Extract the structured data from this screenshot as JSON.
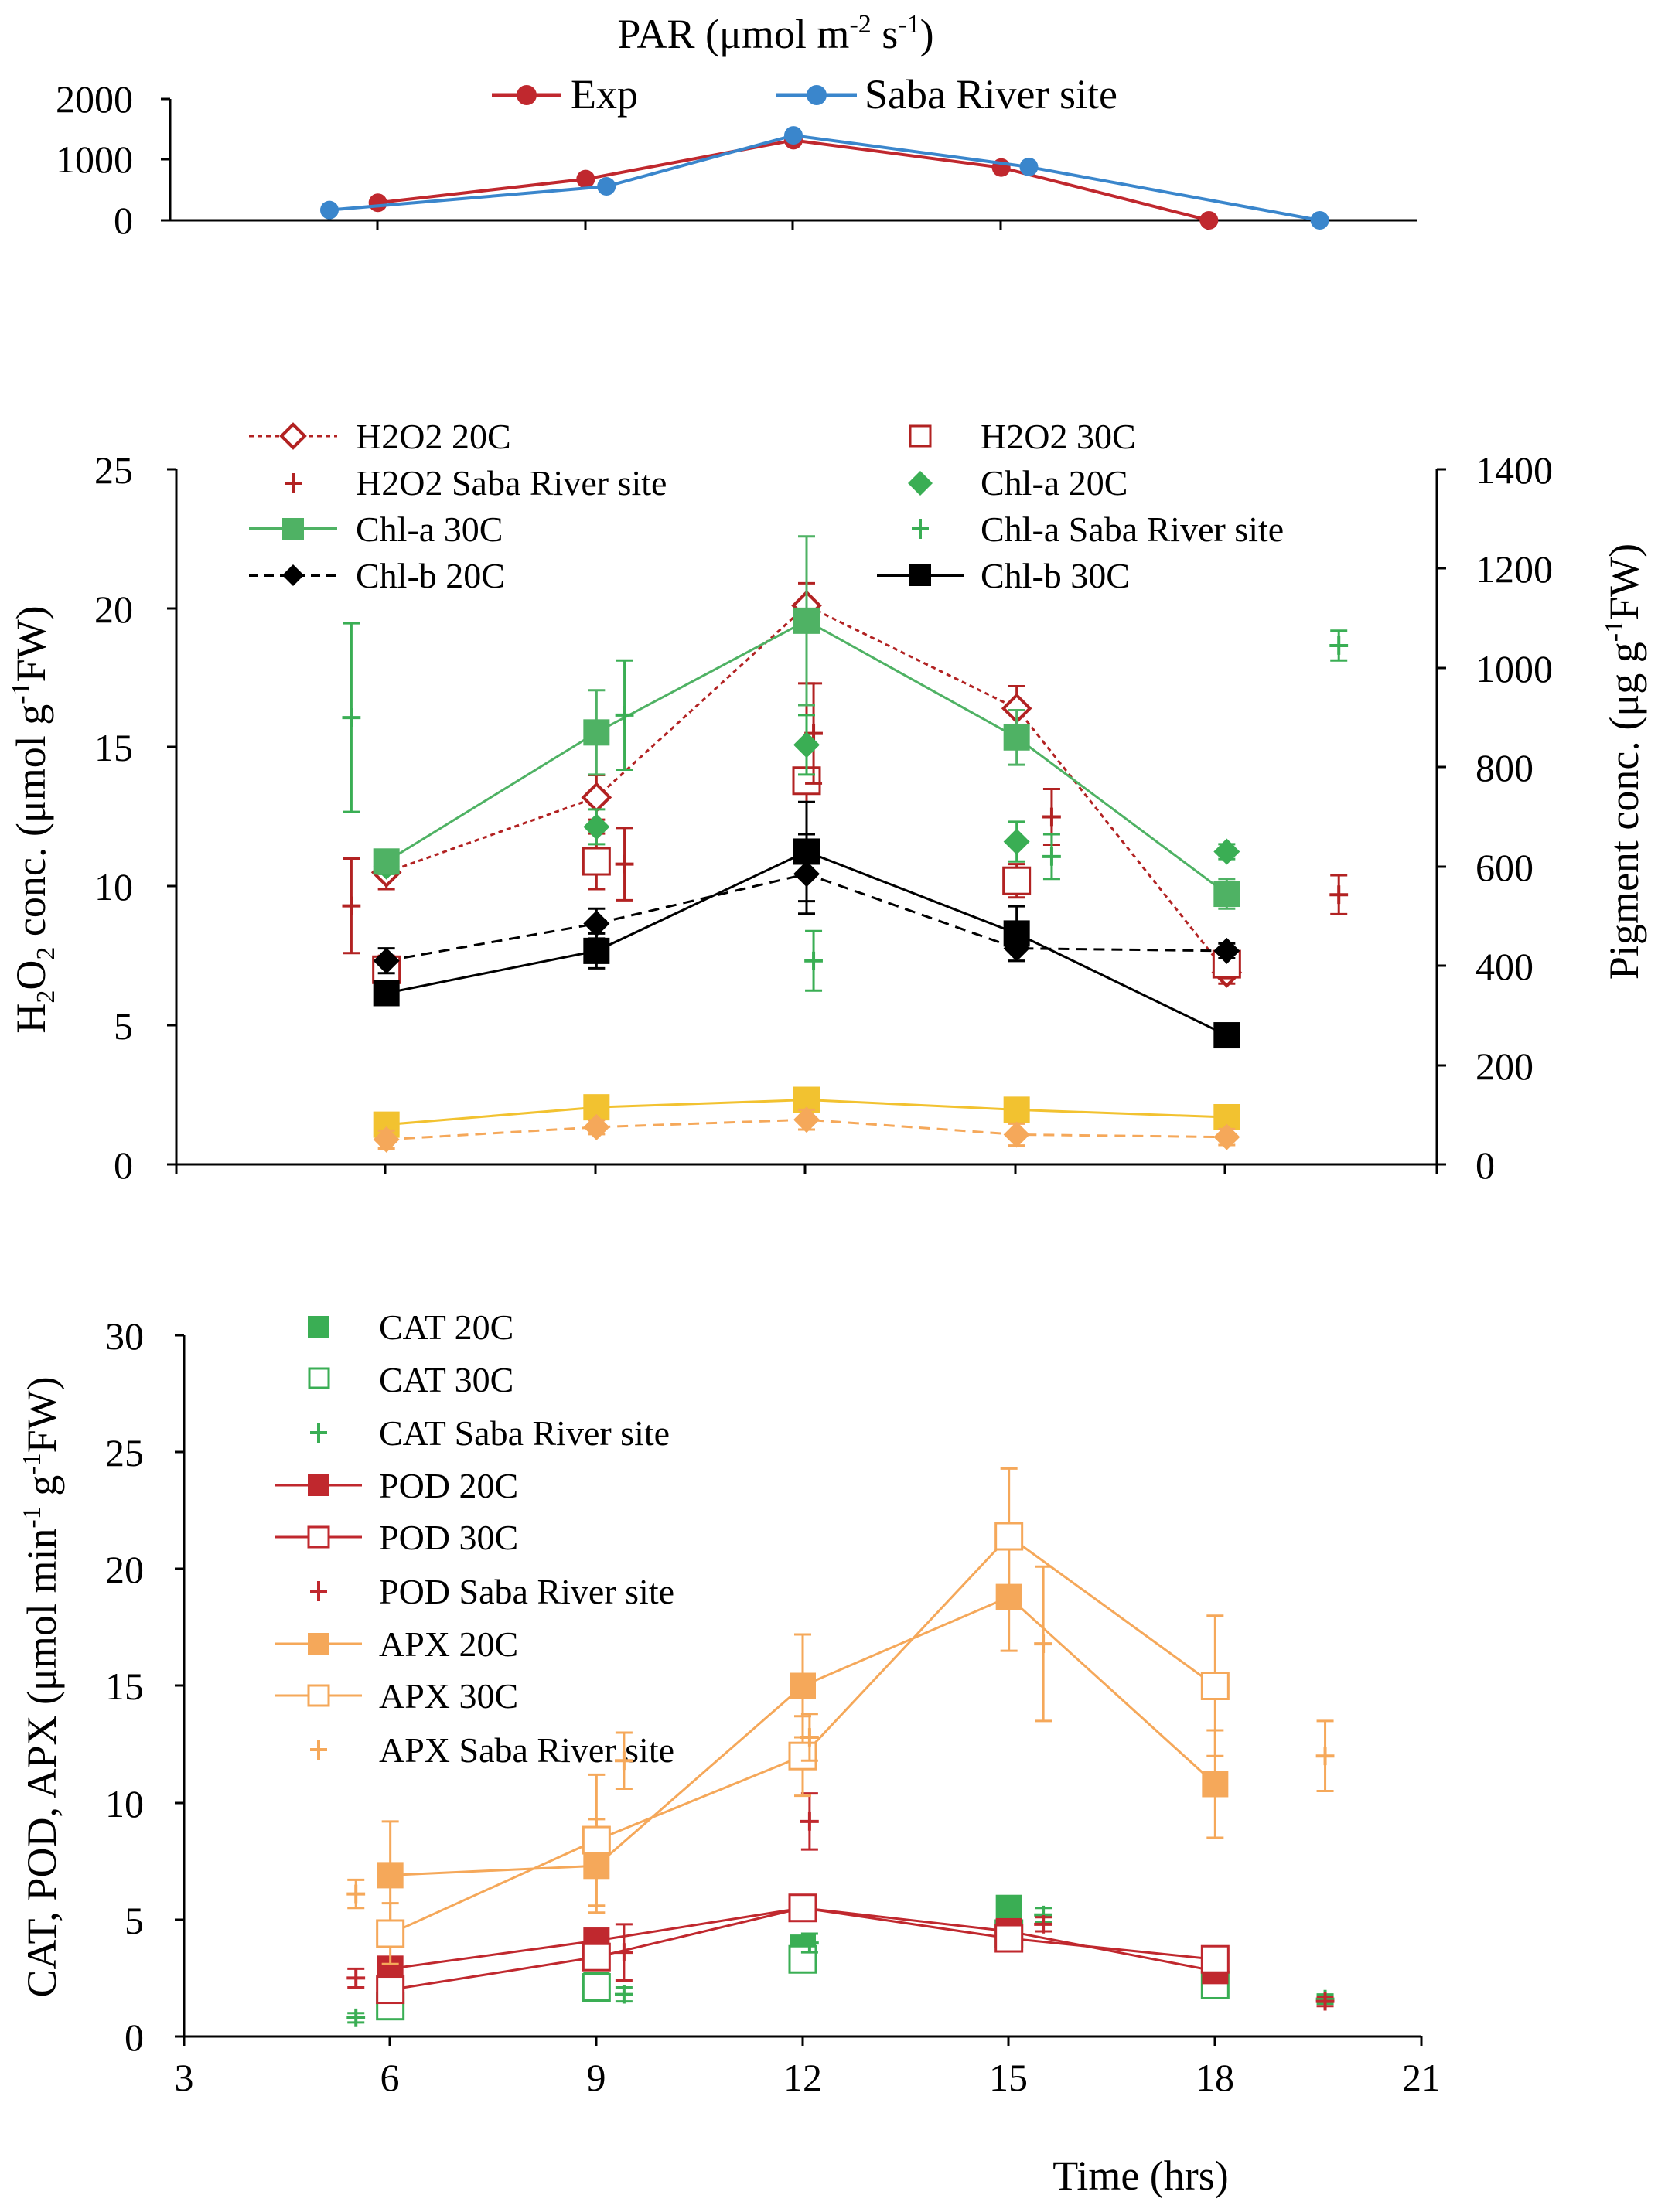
{
  "chart_data": [
    {
      "id": "par",
      "type": "line",
      "title": "PAR (μmol m-2 s-1)",
      "title_parts": {
        "base": "PAR (μmol m",
        "sup1": "-2",
        "mid": " s",
        "sup2": "-1",
        "end": ")"
      },
      "xlim": [
        3,
        21
      ],
      "ylim": [
        0,
        2000
      ],
      "yticks": [
        "0",
        "1000",
        "2000"
      ],
      "legend": "top-center",
      "series": [
        {
          "name": "Exp",
          "color": "#c0282e",
          "marker": "circle",
          "fill": "filled",
          "line": "solid",
          "x": [
            6,
            9,
            12,
            15,
            18
          ],
          "y": [
            290,
            680,
            1320,
            870,
            0
          ],
          "err": []
        },
        {
          "name": "Saba River site",
          "color": "#3a86cc",
          "marker": "circle",
          "fill": "filled",
          "line": "solid",
          "x": [
            5.3,
            9.3,
            12,
            15.4,
            19.6
          ],
          "y": [
            170,
            560,
            1400,
            880,
            0
          ],
          "err": []
        }
      ]
    },
    {
      "id": "h2o2-pigment",
      "type": "line",
      "ylabel": "H2O2 conc. (μmol g-1FW)",
      "ylabel_parts": {
        "a": "H",
        "b": "2",
        "c": "O",
        "d": "2",
        "e": " conc. (μmol g",
        "f": "-1",
        "g": "FW)"
      },
      "y2label": "Pigment conc. (μg g-1FW)",
      "y2label_parts": {
        "a": "Pigment conc. (μg g",
        "b": "-1",
        "c": "FW)"
      },
      "xlim": [
        3,
        21
      ],
      "ylim": [
        0,
        25
      ],
      "y2lim": [
        0,
        1400
      ],
      "yticks": [
        "0",
        "5",
        "10",
        "15",
        "20",
        "25"
      ],
      "y2ticks": [
        "0",
        "200",
        "400",
        "600",
        "800",
        "1000",
        "1200",
        "1400"
      ],
      "legend": "top, two columns",
      "series": [
        {
          "name": "H2O2 20C",
          "color": "#b22222",
          "marker": "diamond",
          "fill": "open",
          "line": "dotted",
          "axis": "left",
          "x": [
            6,
            9,
            12,
            15,
            18
          ],
          "y": [
            10.5,
            13.2,
            20.1,
            16.4,
            6.9
          ],
          "err": [
            0.6,
            0.8,
            0.8,
            0.8,
            0.4
          ]
        },
        {
          "name": "H2O2 30C",
          "color": "#b22222",
          "marker": "square",
          "fill": "open",
          "line": "none",
          "axis": "left",
          "x": [
            6,
            9,
            12,
            15,
            18
          ],
          "y": [
            7.0,
            10.9,
            13.8,
            10.2,
            7.2
          ],
          "err": [
            0.5,
            1.0,
            3.5,
            0.6,
            0.5
          ]
        },
        {
          "name": "H2O2 Saba River site",
          "color": "#b22222",
          "marker": "plus",
          "fill": "none",
          "line": "none",
          "axis": "left",
          "x": [
            5.5,
            9.4,
            12.1,
            15.5,
            19.6
          ],
          "y": [
            9.3,
            10.8,
            15.5,
            12.5,
            9.7
          ],
          "err": [
            1.7,
            1.3,
            1.8,
            1.0,
            0.7
          ]
        },
        {
          "name": "Chl-a 20C",
          "color": "#3aae54",
          "marker": "diamond",
          "fill": "filled",
          "line": "none",
          "axis": "right",
          "x": [
            6,
            9,
            12,
            15,
            18
          ],
          "y": [
            600,
            680,
            845,
            650,
            630
          ],
          "err": [
            15,
            35,
            60,
            40,
            15
          ]
        },
        {
          "name": "Chl-a 30C",
          "color": "#4fb264",
          "marker": "square",
          "fill": "filled",
          "line": "solid",
          "axis": "right",
          "x": [
            6,
            9,
            12,
            15,
            18
          ],
          "y": [
            610,
            870,
            1095,
            860,
            545
          ],
          "err": [
            20,
            85,
            170,
            55,
            30
          ]
        },
        {
          "name": "Chl-a Saba River site",
          "color": "#3aae54",
          "marker": "plus",
          "fill": "none",
          "line": "none",
          "axis": "right",
          "x": [
            5.5,
            9.4,
            12.1,
            15.5,
            19.6
          ],
          "y": [
            900,
            905,
            410,
            620,
            1045
          ],
          "err": [
            190,
            110,
            60,
            45,
            30
          ]
        },
        {
          "name": "Chl-b 20C",
          "color": "#000000",
          "marker": "diamond",
          "fill": "filled",
          "line": "dashed",
          "axis": "right",
          "x": [
            6,
            9,
            12,
            15,
            18
          ],
          "y": [
            410,
            485,
            585,
            435,
            430
          ],
          "err": [
            25,
            30,
            80,
            25,
            15
          ]
        },
        {
          "name": "Chl-b 30C",
          "color": "#000000",
          "marker": "square",
          "fill": "filled",
          "line": "solid",
          "axis": "right",
          "x": [
            6,
            9,
            12,
            15,
            18
          ],
          "y": [
            345,
            430,
            630,
            465,
            260
          ],
          "err": [
            15,
            35,
            100,
            55,
            15
          ]
        },
        {
          "name": "",
          "color": "#f2c230",
          "marker": "square",
          "fill": "filled",
          "line": "solid",
          "axis": "right",
          "x": [
            6,
            9,
            12,
            15,
            18
          ],
          "y": [
            80,
            115,
            130,
            110,
            95
          ],
          "err": [
            10,
            10,
            12,
            10,
            10
          ]
        },
        {
          "name": "",
          "color": "#f5a85a",
          "marker": "diamond",
          "fill": "filled",
          "line": "dashed",
          "axis": "right",
          "x": [
            6,
            9,
            12,
            15,
            18
          ],
          "y": [
            50,
            75,
            90,
            60,
            55
          ],
          "err": [
            18,
            14,
            20,
            22,
            16
          ]
        }
      ]
    },
    {
      "id": "enzymes",
      "type": "line",
      "ylabel": "CAT, POD, APX (μmol min-1 g-1FW)",
      "ylabel_parts": {
        "a": "CAT, POD, APX  (μmol min",
        "b": "-1",
        "c": " g",
        "d": "-1",
        "e": "FW)"
      },
      "xlabel": "Time (hrs)",
      "xlim": [
        3,
        21
      ],
      "ylim": [
        0,
        30
      ],
      "xticks": [
        "3",
        "6",
        "9",
        "12",
        "15",
        "18",
        "21"
      ],
      "yticks": [
        "0",
        "5",
        "10",
        "15",
        "20",
        "25",
        "30"
      ],
      "legend": "top-left",
      "series": [
        {
          "name": "CAT 20C",
          "color": "#3aae54",
          "marker": "square",
          "fill": "filled",
          "line": "none",
          "x": [
            6,
            9,
            12,
            15,
            18
          ],
          "y": [
            1.4,
            2.2,
            3.8,
            5.5,
            2.2
          ],
          "err": [
            0.2,
            0.2,
            0.4,
            0.4,
            0.2
          ]
        },
        {
          "name": "CAT 30C",
          "color": "#3aae54",
          "marker": "square",
          "fill": "open",
          "line": "none",
          "x": [
            6,
            9,
            12,
            15,
            18
          ],
          "y": [
            1.3,
            2.1,
            3.3,
            4.4,
            2.2
          ],
          "err": [
            0.2,
            0.2,
            0.3,
            0.3,
            0.2
          ]
        },
        {
          "name": "CAT Saba River site",
          "color": "#3aae54",
          "marker": "plus",
          "fill": "none",
          "line": "none",
          "x": [
            5.5,
            9.4,
            12.1,
            15.5,
            19.6
          ],
          "y": [
            0.8,
            1.8,
            4.0,
            5.2,
            1.6
          ],
          "err": [
            0.2,
            0.3,
            0.4,
            0.3,
            0.2
          ]
        },
        {
          "name": "POD 20C",
          "color": "#c0282e",
          "marker": "square",
          "fill": "filled",
          "line": "solid",
          "x": [
            6,
            9,
            12,
            15,
            18
          ],
          "y": [
            2.9,
            4.1,
            5.5,
            4.5,
            2.8
          ],
          "err": [
            0.3,
            0.4,
            0.3,
            0.3,
            0.3
          ]
        },
        {
          "name": "POD 30C",
          "color": "#c0282e",
          "marker": "square",
          "fill": "open",
          "line": "solid",
          "x": [
            6,
            9,
            12,
            15,
            18
          ],
          "y": [
            2.0,
            3.4,
            5.5,
            4.2,
            3.3
          ],
          "err": [
            0.3,
            0.4,
            0.3,
            0.3,
            0.3
          ]
        },
        {
          "name": "POD Saba River site",
          "color": "#c0282e",
          "marker": "plus",
          "fill": "none",
          "line": "none",
          "x": [
            5.5,
            9.4,
            12.1,
            15.5,
            19.6
          ],
          "y": [
            2.5,
            3.6,
            9.2,
            4.8,
            1.5
          ],
          "err": [
            0.4,
            1.2,
            1.2,
            0.3,
            0.2
          ]
        },
        {
          "name": "APX 20C",
          "color": "#f5a85a",
          "marker": "square",
          "fill": "filled",
          "line": "solid",
          "x": [
            6,
            9,
            12,
            15,
            18
          ],
          "y": [
            6.9,
            7.3,
            15.0,
            18.8,
            10.8
          ],
          "err": [
            2.3,
            2.0,
            2.2,
            2.3,
            2.3
          ]
        },
        {
          "name": "APX 30C",
          "color": "#f5a85a",
          "marker": "square",
          "fill": "open",
          "line": "solid",
          "x": [
            6,
            9,
            12,
            15,
            18
          ],
          "y": [
            4.4,
            8.4,
            12.0,
            21.4,
            15.0
          ],
          "err": [
            1.3,
            2.8,
            1.7,
            2.9,
            3.0
          ]
        },
        {
          "name": "APX Saba River site",
          "color": "#f5a85a",
          "marker": "plus",
          "fill": "none",
          "line": "none",
          "x": [
            5.5,
            9.4,
            12.1,
            15.5,
            19.6
          ],
          "y": [
            6.1,
            11.8,
            12.8,
            16.8,
            12.0
          ],
          "err": [
            0.6,
            1.2,
            1.0,
            3.3,
            1.5
          ]
        }
      ]
    }
  ]
}
